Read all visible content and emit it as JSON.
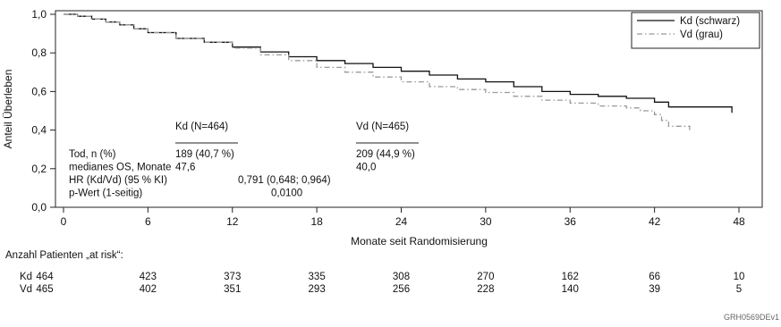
{
  "chart_data": {
    "type": "line",
    "title": "",
    "xlabel": "Monate seit Randomisierung",
    "ylabel": "Anteil Überleben",
    "xlim": [
      0,
      48
    ],
    "ylim": [
      0,
      1
    ],
    "x_ticks": [
      0,
      6,
      12,
      18,
      24,
      30,
      36,
      42,
      48
    ],
    "y_ticks": [
      "0,0",
      "0,2",
      "0,4",
      "0,6",
      "0,8",
      "1,0"
    ],
    "grid": false,
    "legend_position": "top-right",
    "series": [
      {
        "name": "Kd (schwarz)",
        "color": "#111111",
        "line_style": "solid",
        "points": [
          [
            0,
            1.0
          ],
          [
            1,
            0.99
          ],
          [
            2,
            0.975
          ],
          [
            3,
            0.96
          ],
          [
            4,
            0.945
          ],
          [
            5,
            0.925
          ],
          [
            6,
            0.905
          ],
          [
            8,
            0.875
          ],
          [
            10,
            0.855
          ],
          [
            12,
            0.83
          ],
          [
            14,
            0.805
          ],
          [
            16,
            0.78
          ],
          [
            18,
            0.76
          ],
          [
            20,
            0.745
          ],
          [
            22,
            0.725
          ],
          [
            24,
            0.705
          ],
          [
            26,
            0.685
          ],
          [
            28,
            0.665
          ],
          [
            30,
            0.65
          ],
          [
            32,
            0.625
          ],
          [
            34,
            0.6
          ],
          [
            36,
            0.585
          ],
          [
            38,
            0.575
          ],
          [
            40,
            0.565
          ],
          [
            42,
            0.545
          ],
          [
            43,
            0.52
          ],
          [
            44,
            0.52
          ],
          [
            46,
            0.52
          ],
          [
            47.5,
            0.52
          ],
          [
            47.5,
            0.49
          ]
        ]
      },
      {
        "name": "Vd (grau)",
        "color": "#999999",
        "line_style": "dash-dot",
        "points": [
          [
            0,
            1.0
          ],
          [
            1,
            0.99
          ],
          [
            2,
            0.975
          ],
          [
            3,
            0.96
          ],
          [
            4,
            0.945
          ],
          [
            5,
            0.925
          ],
          [
            6,
            0.905
          ],
          [
            8,
            0.875
          ],
          [
            10,
            0.855
          ],
          [
            12,
            0.825
          ],
          [
            14,
            0.79
          ],
          [
            16,
            0.76
          ],
          [
            18,
            0.725
          ],
          [
            20,
            0.7
          ],
          [
            22,
            0.675
          ],
          [
            24,
            0.65
          ],
          [
            26,
            0.625
          ],
          [
            28,
            0.61
          ],
          [
            30,
            0.595
          ],
          [
            32,
            0.575
          ],
          [
            34,
            0.555
          ],
          [
            36,
            0.54
          ],
          [
            38,
            0.525
          ],
          [
            40,
            0.515
          ],
          [
            41,
            0.5
          ],
          [
            42,
            0.48
          ],
          [
            42.5,
            0.45
          ],
          [
            43,
            0.42
          ],
          [
            44.5,
            0.42
          ],
          [
            44.5,
            0.39
          ]
        ]
      }
    ],
    "stats_table": {
      "header_kd": "Kd (N=464)",
      "header_vd": "Vd (N=465)",
      "rows": [
        {
          "label": "Tod, n (%)",
          "kd": "189 (40,7 %)",
          "vd": "209 (44,9 %)",
          "mid": ""
        },
        {
          "label": "medianes OS, Monate",
          "kd": "47,6",
          "vd": "40,0",
          "mid": ""
        },
        {
          "label": "HR (Kd/Vd) (95 % KI)",
          "kd": "",
          "vd": "",
          "mid": "0,791 (0,648; 0,964)"
        },
        {
          "label": "p-Wert (1-seitig)",
          "kd": "",
          "vd": "",
          "mid": "0,0100"
        }
      ]
    },
    "at_risk": {
      "title": "Anzahl Patienten „at risk“:",
      "rows": [
        {
          "label": "Kd",
          "values": [
            464,
            423,
            373,
            335,
            308,
            270,
            162,
            66,
            10
          ]
        },
        {
          "label": "Vd",
          "values": [
            465,
            402,
            351,
            293,
            256,
            228,
            140,
            39,
            5
          ]
        }
      ]
    }
  },
  "footnote": "GRH0569DEv1"
}
